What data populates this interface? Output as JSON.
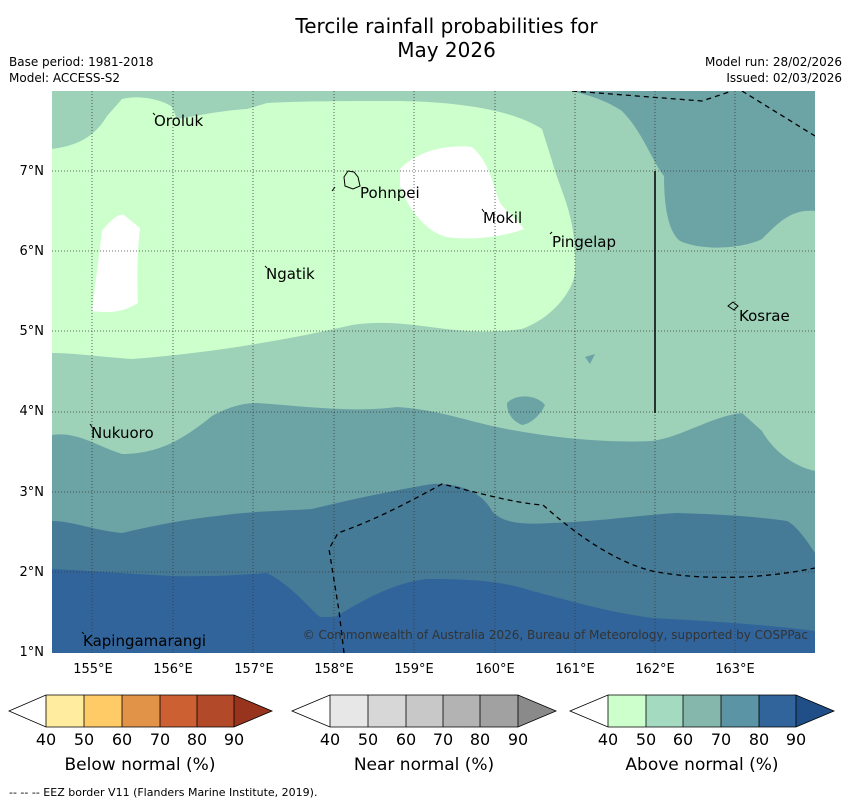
{
  "title_line1": "Tercile rainfall probabilities for",
  "title_line2": "May 2026",
  "base_period": "Base period: 1981-2018",
  "model": "Model: ACCESS-S2",
  "model_run": "Model run: 28/02/2026",
  "issued": "Issued: 02/03/2026",
  "map": {
    "lat_labels": [
      "7°N",
      "6°N",
      "5°N",
      "4°N",
      "3°N",
      "2°N",
      "1°N"
    ],
    "lon_labels": [
      "155°E",
      "156°E",
      "157°E",
      "158°E",
      "159°E",
      "160°E",
      "161°E",
      "162°E",
      "163°E"
    ],
    "places": {
      "oroluk": "Oroluk",
      "pohnpei": "Pohnpei",
      "mokil": "Mokil",
      "pingelap": "Pingelap",
      "ngatik": "Ngatik",
      "kosrae": "Kosrae",
      "nukuoro": "Nukuoro",
      "kapingamarangi": "Kapingamarangi"
    },
    "copyright": "© Commonwealth of Australia 2026, Bureau of Meteorology, supported by COSPPac",
    "colors": {
      "white": "#ffffff",
      "above_40_50": "#ccffcc",
      "above_50_60": "#9dd1b8",
      "above_60_70": "#6ca3a5",
      "above_70_80": "#457b97",
      "above_80_90": "#30649a"
    }
  },
  "legend": {
    "ticks": [
      "40",
      "50",
      "60",
      "70",
      "80",
      "90"
    ],
    "below_label": "Below normal (%)",
    "near_label": "Near normal (%)",
    "above_label": "Above normal (%)",
    "below_colors": [
      "#ffffff",
      "#ffec9e",
      "#fecb66",
      "#e19447",
      "#cd6033",
      "#b24a2a",
      "#98341e"
    ],
    "near_colors": [
      "#ffffff",
      "#e7e7e7",
      "#d7d7d7",
      "#c8c8c8",
      "#b3b3b3",
      "#a1a1a1",
      "#8a8a8a"
    ],
    "above_colors": [
      "#ffffff",
      "#ccffcc",
      "#a4dbc0",
      "#85b7ac",
      "#5a94a5",
      "#30649a",
      "#1f4f86"
    ]
  },
  "footer": "--  --  -- EEZ border V11 (Flanders Marine Institute, 2019)."
}
